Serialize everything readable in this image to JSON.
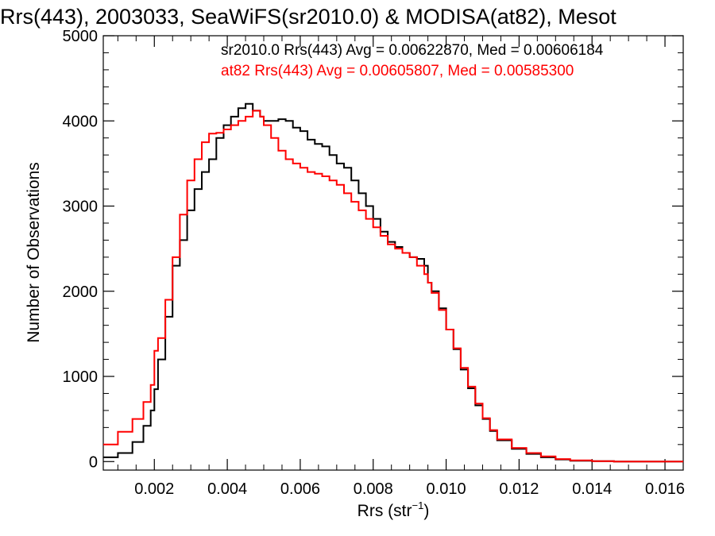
{
  "chart_data": {
    "type": "line",
    "title": "Rrs(443), 2003033, SeaWiFS(sr2010.0) & MODISA(at82), Mesot",
    "xlabel": "Rrs (str",
    "xlabel_sup": "−1",
    "xlabel_close": ")",
    "ylabel": "Number of Observations",
    "xlim": [
      0.0006,
      0.0165
    ],
    "ylim": [
      -100,
      5000
    ],
    "xticks": [
      0.002,
      0.004,
      0.006,
      0.008,
      0.01,
      0.012,
      0.014,
      0.016
    ],
    "xtick_labels": [
      "0.002",
      "0.004",
      "0.006",
      "0.008",
      "0.010",
      "0.012",
      "0.014",
      "0.016"
    ],
    "yticks": [
      0,
      1000,
      2000,
      3000,
      4000,
      5000
    ],
    "ytick_labels": [
      "0",
      "1000",
      "2000",
      "3000",
      "4000",
      "5000"
    ],
    "grid": false,
    "legend_position": "top-left",
    "series": [
      {
        "name": "sr2010.0",
        "color": "#000000",
        "legend_text": "sr2010.0 Rrs(443) Avg = 0.00622870, Med = 0.00606184",
        "x": [
          0.0006,
          0.001,
          0.0014,
          0.0017,
          0.0019,
          0.002,
          0.0021,
          0.0023,
          0.0025,
          0.0027,
          0.0029,
          0.0031,
          0.0033,
          0.0035,
          0.0037,
          0.0039,
          0.0041,
          0.0043,
          0.0045,
          0.0047,
          0.0049,
          0.005,
          0.0052,
          0.0054,
          0.0056,
          0.0058,
          0.006,
          0.0062,
          0.0064,
          0.0066,
          0.0068,
          0.007,
          0.0072,
          0.0074,
          0.0076,
          0.0078,
          0.008,
          0.0082,
          0.0084,
          0.0086,
          0.0088,
          0.009,
          0.0092,
          0.0094,
          0.0095,
          0.0096,
          0.0098,
          0.01,
          0.0102,
          0.0104,
          0.0106,
          0.0108,
          0.011,
          0.0112,
          0.0114,
          0.0118,
          0.0122,
          0.0126,
          0.013,
          0.0134,
          0.014,
          0.0146,
          0.0152,
          0.0158,
          0.0165
        ],
        "y": [
          50,
          100,
          230,
          420,
          600,
          850,
          1200,
          1700,
          2300,
          2600,
          2950,
          3200,
          3400,
          3550,
          3800,
          3950,
          4050,
          4150,
          4200,
          4120,
          4050,
          4000,
          4000,
          4020,
          4000,
          3920,
          3880,
          3780,
          3730,
          3700,
          3600,
          3500,
          3450,
          3300,
          3150,
          3000,
          2850,
          2700,
          2580,
          2520,
          2450,
          2400,
          2380,
          2300,
          2100,
          2000,
          1800,
          1550,
          1320,
          1080,
          860,
          660,
          500,
          360,
          250,
          150,
          90,
          50,
          25,
          10,
          5,
          0,
          0,
          0,
          0
        ]
      },
      {
        "name": "at82",
        "color": "#ff0000",
        "legend_text": "at82 Rrs(443) Avg = 0.00605807, Med = 0.00585300",
        "x": [
          0.0006,
          0.001,
          0.0014,
          0.0017,
          0.0019,
          0.002,
          0.0021,
          0.0023,
          0.0025,
          0.0027,
          0.0029,
          0.0031,
          0.0033,
          0.0035,
          0.0037,
          0.0039,
          0.0041,
          0.0043,
          0.0045,
          0.0047,
          0.0049,
          0.005,
          0.0052,
          0.0054,
          0.0056,
          0.0058,
          0.006,
          0.0062,
          0.0064,
          0.0066,
          0.0068,
          0.007,
          0.0072,
          0.0074,
          0.0076,
          0.0078,
          0.008,
          0.0082,
          0.0084,
          0.0086,
          0.0088,
          0.009,
          0.0092,
          0.0094,
          0.0095,
          0.0096,
          0.0098,
          0.01,
          0.0102,
          0.0104,
          0.0106,
          0.0108,
          0.011,
          0.0112,
          0.0114,
          0.0118,
          0.0122,
          0.0126,
          0.013,
          0.0134,
          0.014,
          0.0146,
          0.0152,
          0.0158,
          0.0165
        ],
        "y": [
          200,
          350,
          500,
          700,
          900,
          1300,
          1450,
          1900,
          2400,
          2900,
          3300,
          3550,
          3750,
          3850,
          3860,
          3900,
          3950,
          4000,
          4050,
          4120,
          4050,
          3950,
          3800,
          3650,
          3550,
          3500,
          3450,
          3400,
          3380,
          3350,
          3300,
          3250,
          3150,
          3050,
          2950,
          2850,
          2750,
          2650,
          2550,
          2500,
          2450,
          2400,
          2300,
          2200,
          2100,
          1980,
          1780,
          1550,
          1330,
          1100,
          880,
          680,
          510,
          370,
          260,
          160,
          100,
          60,
          30,
          15,
          5,
          0,
          0,
          0,
          0
        ]
      }
    ]
  }
}
